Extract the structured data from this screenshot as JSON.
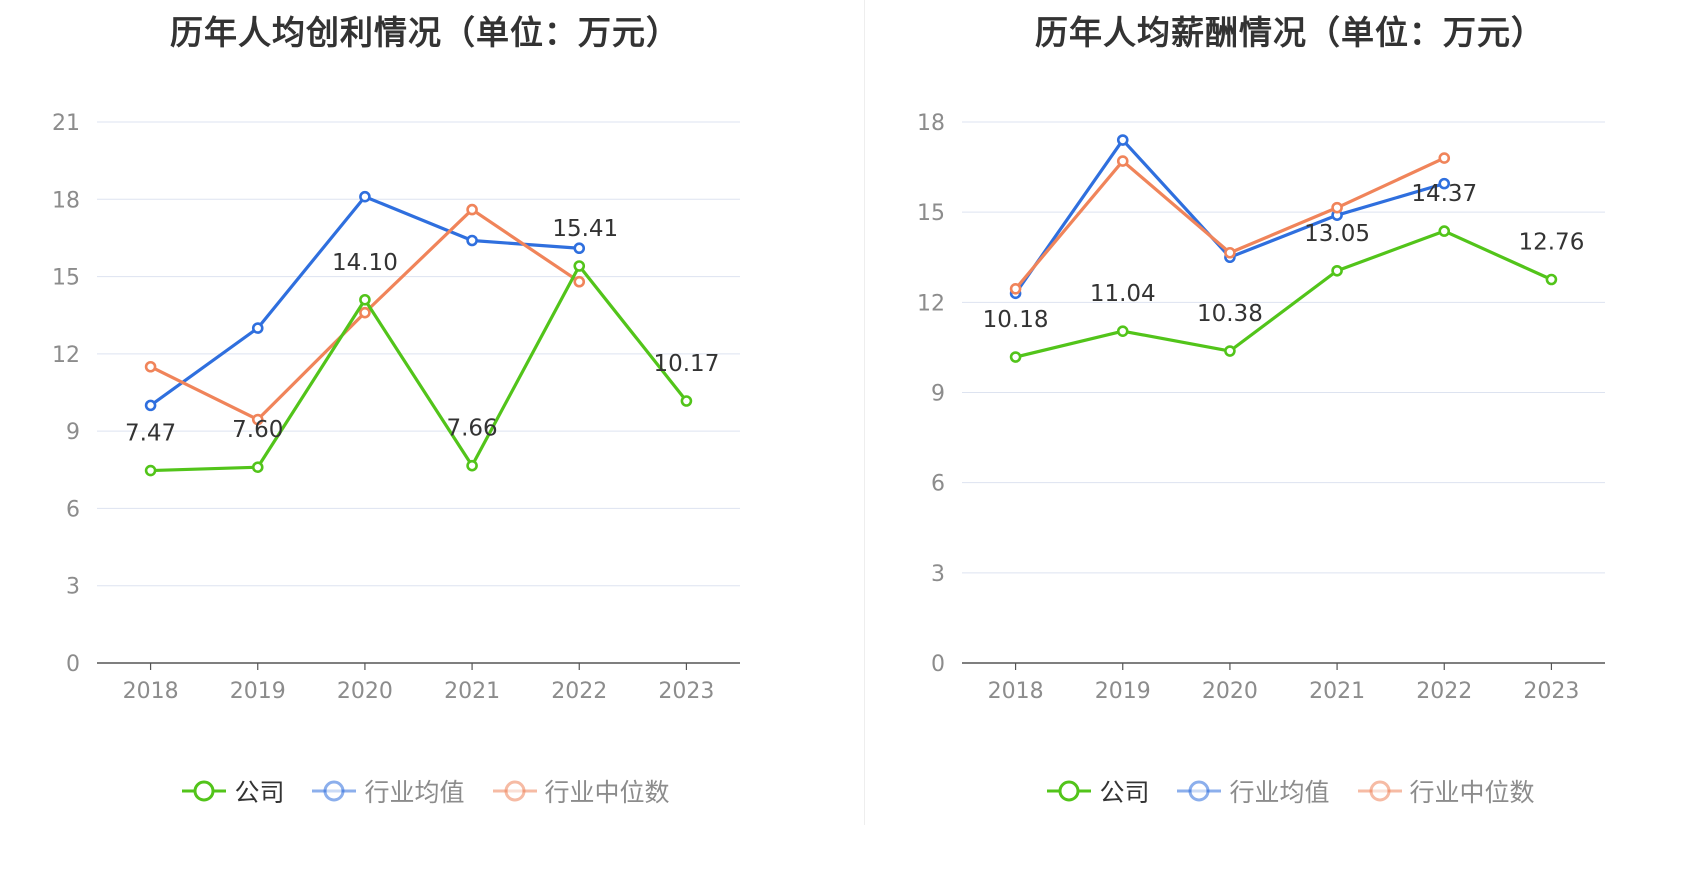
{
  "chart_data": [
    {
      "type": "line",
      "title": "历年人均创利情况（单位：万元）",
      "categories": [
        "2018",
        "2019",
        "2020",
        "2021",
        "2022",
        "2023"
      ],
      "ylim": [
        0,
        21
      ],
      "yticks": [
        0,
        3,
        6,
        9,
        12,
        15,
        18,
        21
      ],
      "yticklabels": [
        "0",
        "3",
        "6",
        "9",
        "12",
        "15",
        "18",
        "21"
      ],
      "grid": true,
      "legend_position": "bottom",
      "series": [
        {
          "name": "公司",
          "color": "#52c41a",
          "values": [
            7.47,
            7.6,
            14.1,
            7.66,
            15.41,
            10.17
          ],
          "labels": [
            "7.47",
            "7.60",
            "14.10",
            "7.66",
            "15.41",
            "10.17"
          ]
        },
        {
          "name": "行业均值",
          "color": "#2f6fde",
          "values": [
            10.0,
            13.0,
            18.1,
            16.4,
            16.1,
            null
          ]
        },
        {
          "name": "行业中位数",
          "color": "#f0845a",
          "values": [
            11.5,
            9.45,
            13.6,
            17.6,
            14.8,
            null
          ]
        }
      ]
    },
    {
      "type": "line",
      "title": "历年人均薪酬情况（单位：万元）",
      "categories": [
        "2018",
        "2019",
        "2020",
        "2021",
        "2022",
        "2023"
      ],
      "ylim": [
        0,
        18
      ],
      "yticks": [
        0,
        3,
        6,
        9,
        12,
        15,
        18
      ],
      "yticklabels": [
        "0",
        "3",
        "6",
        "9",
        "12",
        "15",
        "18"
      ],
      "grid": true,
      "legend_position": "bottom",
      "series": [
        {
          "name": "公司",
          "color": "#52c41a",
          "values": [
            10.18,
            11.04,
            10.38,
            13.05,
            14.37,
            12.76
          ],
          "labels": [
            "10.18",
            "11.04",
            "10.38",
            "13.05",
            "14.37",
            "12.76"
          ]
        },
        {
          "name": "行业均值",
          "color": "#2f6fde",
          "values": [
            12.3,
            17.4,
            13.5,
            14.9,
            15.95,
            null
          ]
        },
        {
          "name": "行业中位数",
          "color": "#f0845a",
          "values": [
            12.45,
            16.7,
            13.65,
            15.15,
            16.8,
            null
          ]
        }
      ]
    }
  ]
}
